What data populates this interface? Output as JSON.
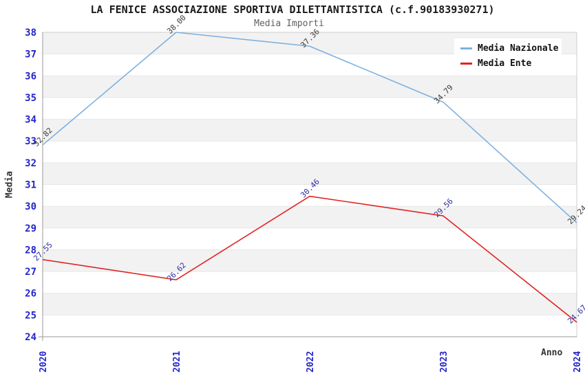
{
  "header": {
    "title": "LA FENICE ASSOCIAZIONE SPORTIVA DILETTANTISTICA (c.f.90183930271)",
    "subtitle": "Media Importi"
  },
  "chart_data": {
    "type": "line",
    "title": "LA FENICE ASSOCIAZIONE SPORTIVA DILETTANTISTICA (c.f.90183930271)",
    "subtitle": "Media Importi",
    "xlabel": "Anno",
    "ylabel": "Media",
    "x": [
      2020,
      2021,
      2022,
      2023,
      2024
    ],
    "ylim": [
      24,
      38
    ],
    "y_tick_step": 1,
    "grid": "horizontal-bands",
    "legend_position": "top-right",
    "series": [
      {
        "name": "Media Nazionale",
        "color": "#7db0e0",
        "label_color": "#3a3a3a",
        "values": [
          32.82,
          38.0,
          37.36,
          34.79,
          29.24
        ]
      },
      {
        "name": "Media Ente",
        "color": "#e32222",
        "label_color": "#2d2da0",
        "values": [
          27.55,
          26.62,
          30.46,
          29.56,
          24.67
        ]
      }
    ],
    "colors": {
      "tick_label": "#2424cc",
      "band": "#f2f2f2",
      "grid_line": "#e7e7e7",
      "plot_border": "#cccccc",
      "axis_line": "#9a9a9a",
      "background": "#ffffff"
    }
  }
}
